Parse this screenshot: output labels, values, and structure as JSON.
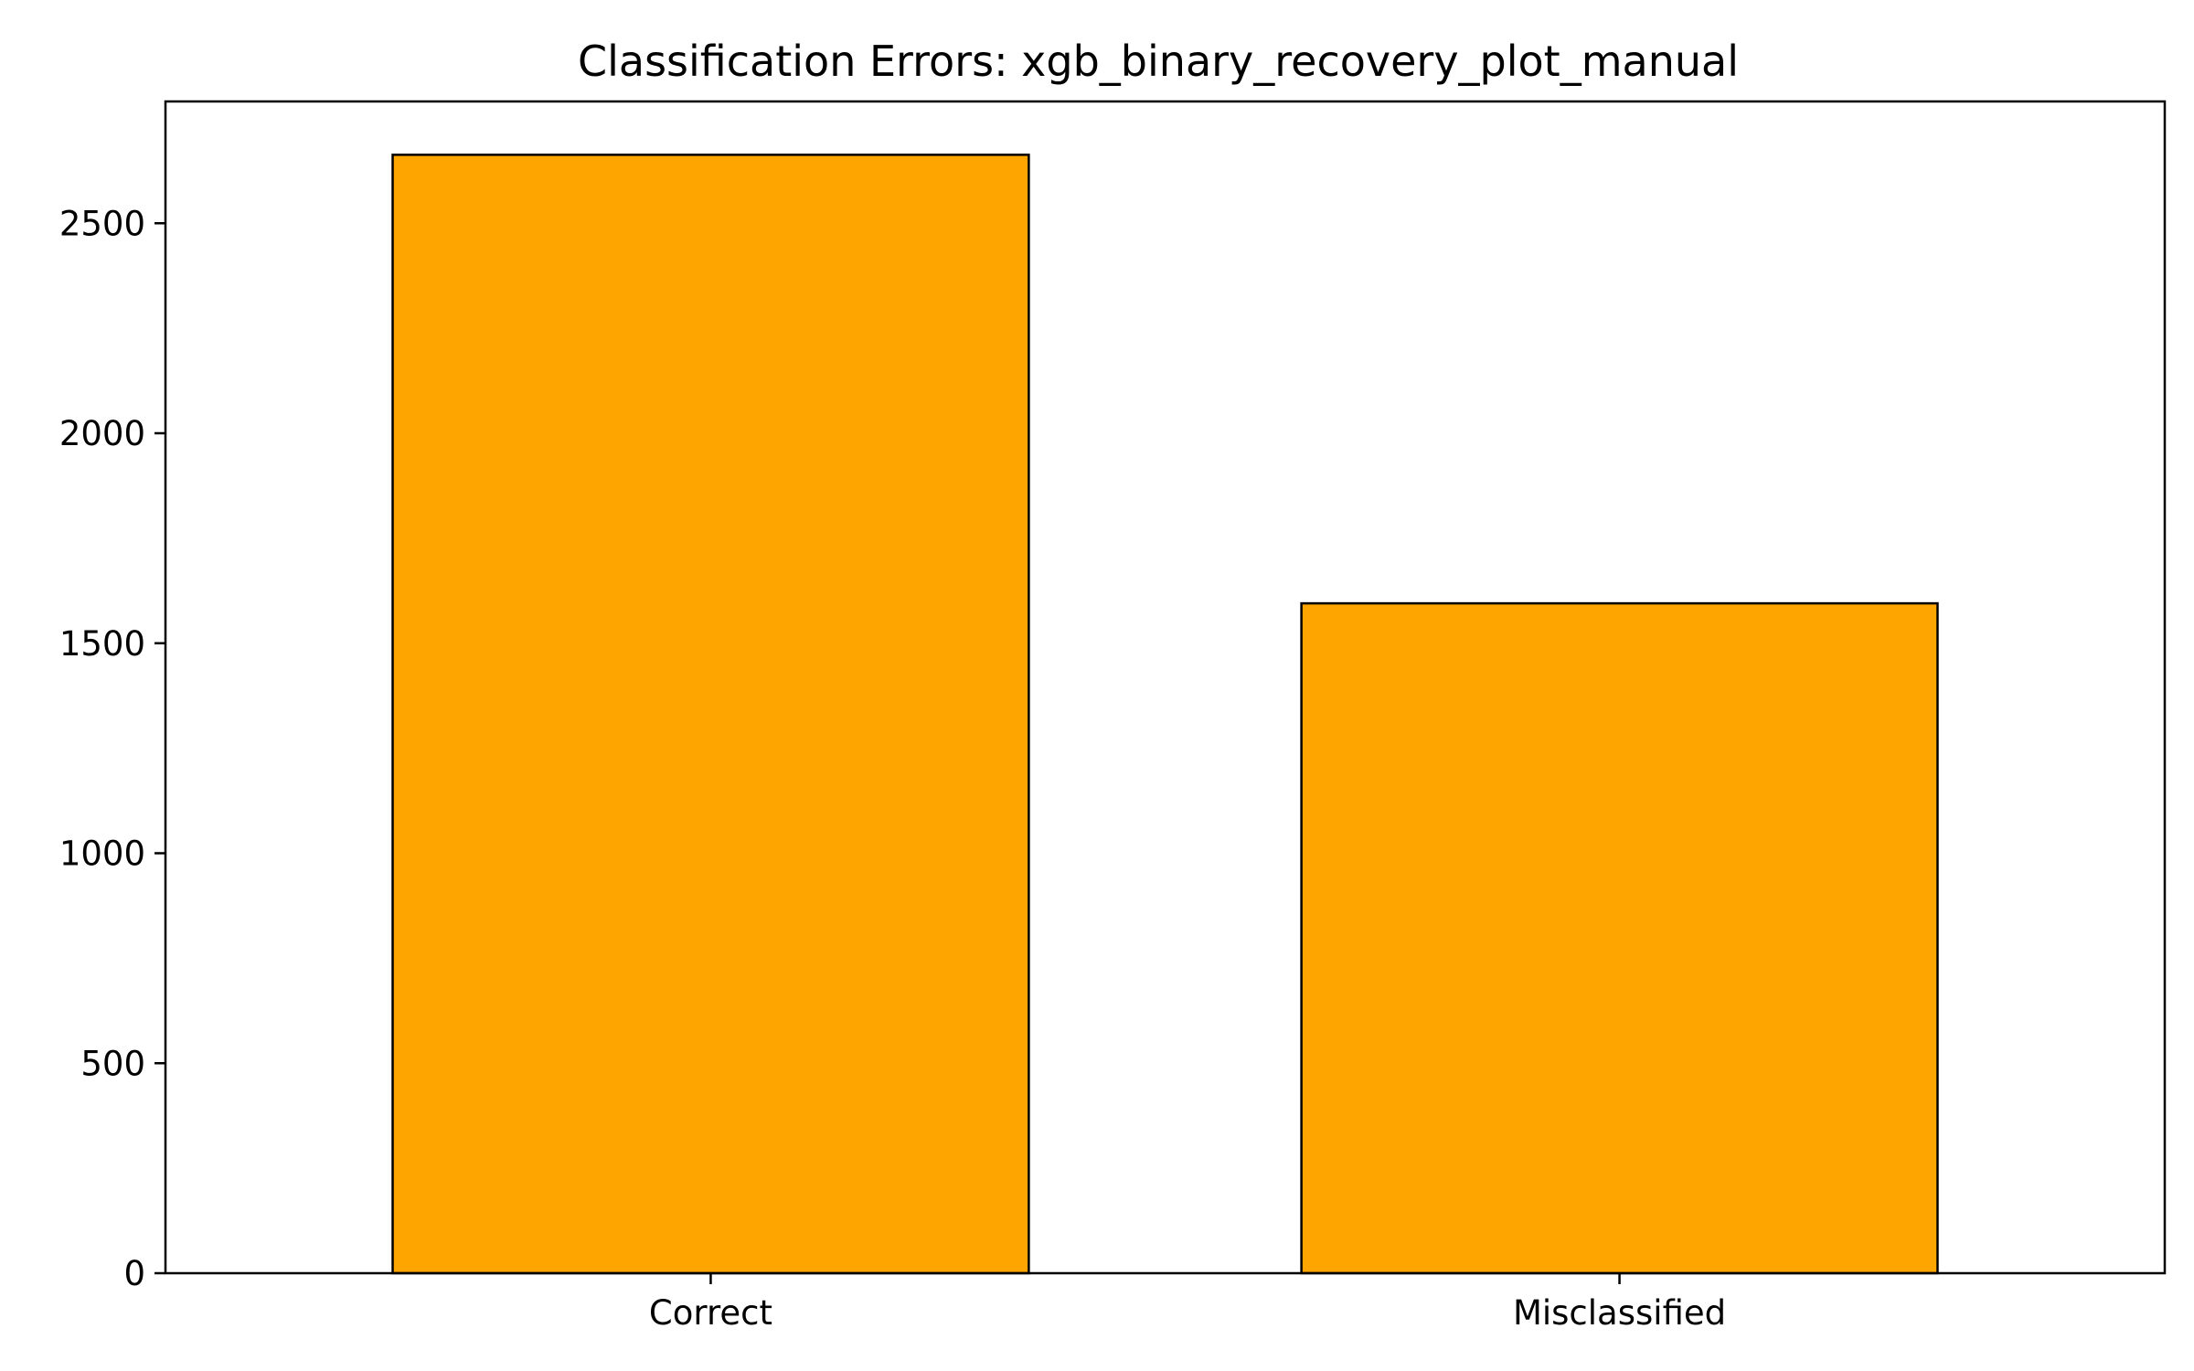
{
  "chart_data": {
    "type": "bar",
    "title": "Classification Errors: xgb_binary_recovery_plot_manual",
    "xlabel": "",
    "ylabel": "",
    "categories": [
      "Correct",
      "Misclassified"
    ],
    "values": [
      2663,
      1595
    ],
    "ylim": [
      0,
      2790
    ],
    "yticks": [
      0,
      500,
      1000,
      1500,
      2000,
      2500
    ],
    "grid": false,
    "bar_color": "#ffa500",
    "edge_color": "#000000"
  }
}
